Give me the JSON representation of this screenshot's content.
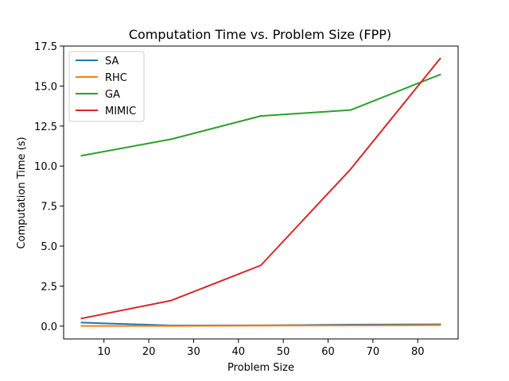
{
  "chart_data": {
    "type": "line",
    "title": "Computation Time vs. Problem Size (FPP)",
    "xlabel": "Problem Size",
    "ylabel": "Computation Time (s)",
    "xlim": [
      1,
      89
    ],
    "ylim": [
      -0.8,
      17.5
    ],
    "x_ticks": [
      10,
      20,
      30,
      40,
      50,
      60,
      70,
      80
    ],
    "y_ticks": [
      0.0,
      2.5,
      5.0,
      7.5,
      10.0,
      12.5,
      15.0,
      17.5
    ],
    "x_tick_labels": [
      "10",
      "20",
      "30",
      "40",
      "50",
      "60",
      "70",
      "80"
    ],
    "y_tick_labels": [
      "0.0",
      "2.5",
      "5.0",
      "7.5",
      "10.0",
      "12.5",
      "15.0",
      "17.5"
    ],
    "x": [
      5,
      25,
      45,
      65,
      85
    ],
    "grid": false,
    "legend_position": "top-left",
    "series": [
      {
        "name": "SA",
        "color": "#1f77b4",
        "values": [
          0.22,
          0.04,
          0.05,
          0.09,
          0.11
        ]
      },
      {
        "name": "RHC",
        "color": "#ff7f0e",
        "values": [
          0.01,
          0.01,
          0.03,
          0.04,
          0.06
        ]
      },
      {
        "name": "GA",
        "color": "#2ca02c",
        "values": [
          10.65,
          11.68,
          13.13,
          13.5,
          15.72
        ]
      },
      {
        "name": "MIMIC",
        "color": "#d62728",
        "values": [
          0.48,
          1.6,
          3.8,
          9.8,
          16.72
        ]
      }
    ]
  }
}
